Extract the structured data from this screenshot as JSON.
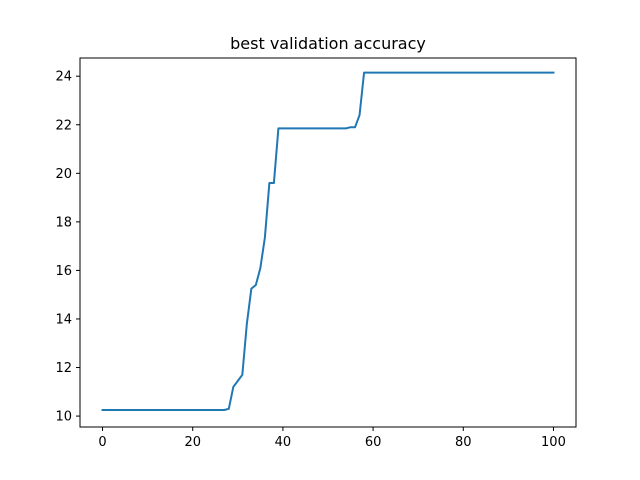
{
  "chart_data": {
    "type": "line",
    "title": "best validation accuracy",
    "xlabel": "",
    "ylabel": "",
    "xlim": [
      -5,
      105
    ],
    "ylim": [
      9.55,
      24.75
    ],
    "xticks": [
      0,
      20,
      40,
      60,
      80,
      100
    ],
    "yticks": [
      10,
      12,
      14,
      16,
      18,
      20,
      22,
      24
    ],
    "grid": false,
    "legend": "none",
    "series": [
      {
        "color": "#1f77b4",
        "x": [
          0,
          27,
          28,
          29,
          30,
          31,
          32,
          33,
          34,
          35,
          36,
          37,
          38,
          39,
          54,
          55,
          56,
          57,
          58,
          100
        ],
        "y": [
          10.25,
          10.25,
          10.3,
          11.2,
          11.45,
          11.7,
          13.8,
          15.25,
          15.4,
          16.1,
          17.35,
          19.6,
          19.6,
          21.85,
          21.85,
          21.9,
          21.9,
          22.4,
          24.15,
          24.15
        ]
      }
    ]
  }
}
